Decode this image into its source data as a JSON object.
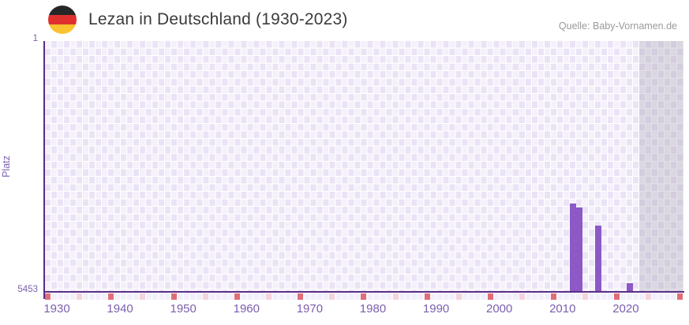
{
  "header": {
    "title": "Lezan in Deutschland (1930-2023)",
    "source": "Quelle: Baby-Vornamen.de",
    "flag_colors": [
      "#262626",
      "#e0302e",
      "#f9c32f"
    ]
  },
  "chart_data": {
    "type": "bar",
    "title": "Lezan in Deutschland (1930-2023)",
    "ylabel": "Platz",
    "y_axis": {
      "min": 1,
      "max": 5453,
      "inverted": true,
      "top_tick_label": "1",
      "bottom_tick_label": "5453"
    },
    "x_axis": {
      "start_year": 1930,
      "end_year": 2030,
      "label_years": [
        1930,
        1940,
        1950,
        1960,
        1970,
        1980,
        1990,
        2000,
        2010,
        2020
      ],
      "major_tick_years": [
        1930,
        1940,
        1950,
        1960,
        1970,
        1980,
        1990,
        2000,
        2010,
        2020,
        2030
      ],
      "minor_tick_years": [
        1935,
        1945,
        1955,
        1965,
        1975,
        1985,
        1995,
        2005,
        2015,
        2025
      ]
    },
    "no_data_band": {
      "from_year": 2024,
      "to_year": 2030
    },
    "points": [
      {
        "year": 2013,
        "rank": 3536
      },
      {
        "year": 2014,
        "rank": 3627
      },
      {
        "year": 2017,
        "rank": 4021
      },
      {
        "year": 2022,
        "rank": 5274
      }
    ],
    "grid": true,
    "legend": false,
    "colors": {
      "bar": "#8c59c7",
      "axis_line": "#5a2d87",
      "axis_label": "#7b5fae",
      "major_tick": "#e06e76",
      "minor_tick": "#f4d3da",
      "grid_cell_light": "#f5f1fb",
      "grid_cell_dark": "#ebe3f5",
      "title_text": "#3b3b3b",
      "source_text": "#9a9a9a"
    }
  }
}
